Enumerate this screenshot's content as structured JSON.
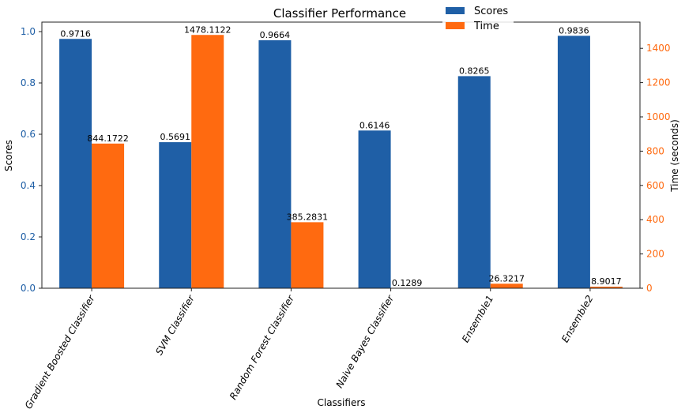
{
  "chart_data": {
    "type": "bar",
    "title": "Classifier Performance",
    "xlabel": "Classifiers",
    "ylabel": "Scores",
    "ylabel_right": "Time (seconds)",
    "categories": [
      "Gradient Boosted Classifier",
      "SVM Classifier",
      "Random Forest Classifier",
      "Naive Bayes Classifier",
      "Ensemble1",
      "Ensemble2"
    ],
    "series": [
      {
        "name": "Scores",
        "axis": "left",
        "color": "#1f5fa6",
        "values": [
          0.9716,
          0.5691,
          0.9664,
          0.6146,
          0.8265,
          0.9836
        ],
        "labels": [
          "0.9716",
          "0.5691",
          "0.9664",
          "0.6146",
          "0.8265",
          "0.9836"
        ]
      },
      {
        "name": "Time",
        "axis": "right",
        "color": "#ff6a10",
        "values": [
          844.1722,
          1478.1122,
          385.2831,
          0.1289,
          26.3217,
          8.9017
        ],
        "labels": [
          "844.1722",
          "1478.1122",
          "385.2831",
          "0.1289",
          "26.3217",
          "8.9017"
        ]
      }
    ],
    "ylim": [
      0,
      1.037
    ],
    "ylim_right": [
      0,
      1553
    ],
    "yticks": [
      "0.0",
      "0.2",
      "0.4",
      "0.6",
      "0.8",
      "1.0"
    ],
    "yticks_right": [
      "0",
      "200",
      "400",
      "600",
      "800",
      "1000",
      "1200",
      "1400"
    ],
    "left_tick_color": "#1f5fa6",
    "right_tick_color": "#ff6a10",
    "grid": false,
    "legend": "top-center"
  }
}
